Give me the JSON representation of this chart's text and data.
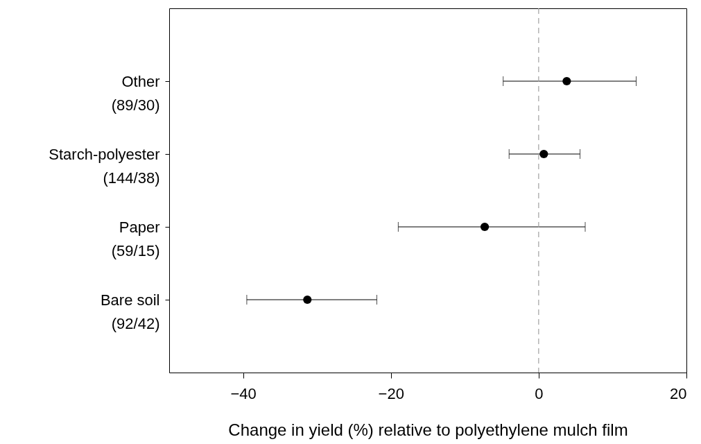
{
  "chart_data": {
    "type": "scatter",
    "xlabel": "Change in yield (%) relative to polyethylene mulch film",
    "categories": [
      "Other\n(89/30)",
      "Starch-polyester\n(144/38)",
      "Paper\n(59/15)",
      "Bare soil\n(92/42)"
    ],
    "orientation": "horizontal",
    "color": "#000000",
    "values": [
      3.8,
      0.7,
      -7.3,
      -31.3
    ],
    "errors": [
      [
        -4.8,
        13.2
      ],
      [
        -4.0,
        5.6
      ],
      [
        -19.0,
        6.3
      ],
      [
        -39.5,
        -21.9
      ]
    ],
    "marker": "circle",
    "xlim": [
      -50,
      20
    ],
    "xticks": [
      -40,
      -20,
      0,
      20
    ],
    "ref_lines": [
      {
        "axis": "x",
        "value": 0,
        "color": "#a0a0a0",
        "line_style": "dashed"
      }
    ],
    "grid": false
  }
}
